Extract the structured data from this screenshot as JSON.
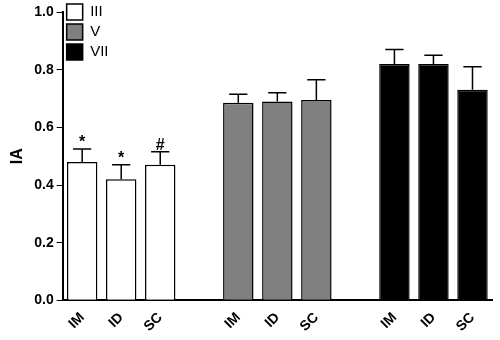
{
  "chart_data": {
    "type": "bar",
    "categories": [
      "IM",
      "ID",
      "SC",
      null,
      "IM",
      "ID",
      "SC",
      null,
      "IM",
      "ID",
      "SC"
    ],
    "y_label": "IA",
    "ylim": [
      0,
      1
    ],
    "yticks": [
      {
        "value": 0,
        "label": "0.0"
      },
      {
        "value": 0.2,
        "label": "0.2"
      },
      {
        "value": 0.4,
        "label": "0.4"
      },
      {
        "value": 0.6,
        "label": "0.6"
      },
      {
        "value": 0.8,
        "label": "0.8"
      },
      {
        "value": 1,
        "label": "1.0"
      }
    ],
    "grid": false,
    "legend": "upper left",
    "series": [
      {
        "name": "III",
        "color": "#ffffff",
        "values": [
          0.48,
          0.42,
          0.47,
          null,
          null,
          null,
          null,
          null,
          null,
          null,
          null
        ],
        "errors": [
          0.045,
          0.05,
          0.045,
          null,
          null,
          null,
          null,
          null,
          null,
          null,
          null
        ],
        "annotations": [
          "*",
          "*",
          "#",
          null,
          null,
          null,
          null,
          null,
          null,
          null,
          null
        ]
      },
      {
        "name": "V",
        "color": "#808080",
        "values": [
          null,
          null,
          null,
          null,
          0.685,
          0.69,
          0.695,
          null,
          null,
          null,
          null
        ],
        "errors": [
          null,
          null,
          null,
          null,
          0.03,
          0.03,
          0.07,
          null,
          null,
          null,
          null
        ]
      },
      {
        "name": "VII",
        "color": "#000000",
        "values": [
          null,
          null,
          null,
          null,
          null,
          null,
          null,
          null,
          0.82,
          0.82,
          0.73
        ],
        "errors": [
          null,
          null,
          null,
          null,
          null,
          null,
          null,
          null,
          0.05,
          0.03,
          0.08
        ]
      }
    ]
  }
}
